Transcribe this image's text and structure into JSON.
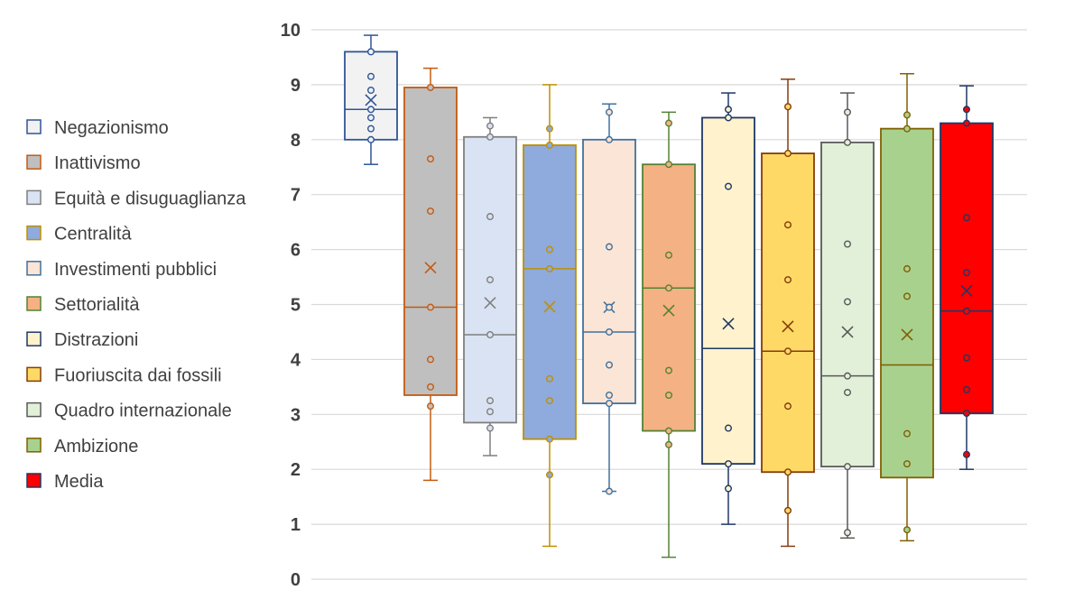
{
  "chart_data": {
    "type": "boxplot",
    "title": "",
    "xlabel": "",
    "ylabel": "",
    "ylim": [
      0,
      10
    ],
    "y_ticks": [
      0,
      1,
      2,
      3,
      4,
      5,
      6,
      7,
      8,
      9,
      10
    ],
    "grid": true,
    "legend_position": "left",
    "series": [
      {
        "name": "Negazionismo",
        "fill": "#f2f2f2",
        "stroke": "#2f5597",
        "min": 7.55,
        "q1": 8.0,
        "median": 8.55,
        "q3": 9.6,
        "max": 9.9,
        "mean": 8.72,
        "points": [
          9.6,
          9.15,
          8.9,
          8.55,
          8.4,
          8.2,
          8.0
        ]
      },
      {
        "name": "Inattivismo",
        "fill": "#bfbfbf",
        "stroke": "#c55a11",
        "min": 1.8,
        "q1": 3.35,
        "median": 4.95,
        "q3": 8.95,
        "max": 9.3,
        "mean": 5.67,
        "points": [
          8.95,
          7.65,
          6.7,
          4.95,
          4.0,
          3.5,
          3.15
        ]
      },
      {
        "name": "Equità e disuguaglianza",
        "fill": "#dae3f3",
        "stroke": "#7f7f7f",
        "min": 2.25,
        "q1": 2.85,
        "median": 4.45,
        "q3": 8.05,
        "max": 8.4,
        "mean": 5.03,
        "points": [
          8.25,
          8.05,
          6.6,
          5.45,
          4.45,
          3.25,
          3.05,
          2.75
        ]
      },
      {
        "name": "Centralità",
        "fill": "#8faadc",
        "stroke": "#bf9000",
        "min": 0.6,
        "q1": 2.55,
        "median": 5.65,
        "q3": 7.9,
        "max": 9.0,
        "mean": 4.96,
        "points": [
          8.2,
          7.9,
          6.0,
          5.65,
          3.65,
          3.25,
          2.55,
          1.9
        ]
      },
      {
        "name": "Investimenti pubblici",
        "fill": "#fbe5d6",
        "stroke": "#41719c",
        "min": 1.6,
        "q1": 3.2,
        "median": 4.5,
        "q3": 8.0,
        "max": 8.65,
        "mean": 4.95,
        "points": [
          8.5,
          8.0,
          6.05,
          4.95,
          4.5,
          3.9,
          3.35,
          3.2,
          1.6
        ]
      },
      {
        "name": "Settorialità",
        "fill": "#f4b183",
        "stroke": "#548235",
        "min": 0.4,
        "q1": 2.7,
        "median": 5.3,
        "q3": 7.55,
        "max": 8.5,
        "mean": 4.89,
        "points": [
          8.3,
          7.55,
          5.9,
          5.3,
          3.8,
          3.35,
          2.7,
          2.45
        ]
      },
      {
        "name": "Distrazioni",
        "fill": "#fff2cc",
        "stroke": "#1f3864",
        "min": 1.0,
        "q1": 2.1,
        "median": 4.2,
        "q3": 8.4,
        "max": 8.85,
        "mean": 4.65,
        "points": [
          8.55,
          8.4,
          7.15,
          2.75,
          2.1,
          1.65
        ]
      },
      {
        "name": "Fuoriuscita dai fossili",
        "fill": "#ffd966",
        "stroke": "#843c0c",
        "min": 0.6,
        "q1": 1.95,
        "median": 4.15,
        "q3": 7.75,
        "max": 9.1,
        "mean": 4.6,
        "points": [
          8.6,
          7.75,
          6.45,
          5.45,
          4.15,
          3.15,
          1.95,
          1.25
        ]
      },
      {
        "name": "Quadro internazionale",
        "fill": "#e2f0d9",
        "stroke": "#595959",
        "min": 0.75,
        "q1": 2.05,
        "median": 3.7,
        "q3": 7.95,
        "max": 8.85,
        "mean": 4.5,
        "points": [
          8.5,
          7.95,
          6.1,
          5.05,
          3.7,
          3.4,
          2.05,
          0.85
        ]
      },
      {
        "name": "Ambizione",
        "fill": "#a9d18e",
        "stroke": "#7f6000",
        "min": 0.7,
        "q1": 1.85,
        "median": 3.9,
        "q3": 8.2,
        "max": 9.2,
        "mean": 4.45,
        "points": [
          8.45,
          8.2,
          5.65,
          5.15,
          2.65,
          2.1,
          0.9
        ]
      },
      {
        "name": "Media",
        "fill": "#ff0000",
        "stroke": "#203864",
        "min": 2.0,
        "q1": 3.02,
        "median": 4.88,
        "q3": 8.3,
        "max": 8.98,
        "mean": 5.25,
        "points": [
          8.55,
          8.3,
          6.58,
          5.58,
          4.88,
          4.03,
          3.45,
          3.02,
          2.27
        ]
      }
    ]
  }
}
